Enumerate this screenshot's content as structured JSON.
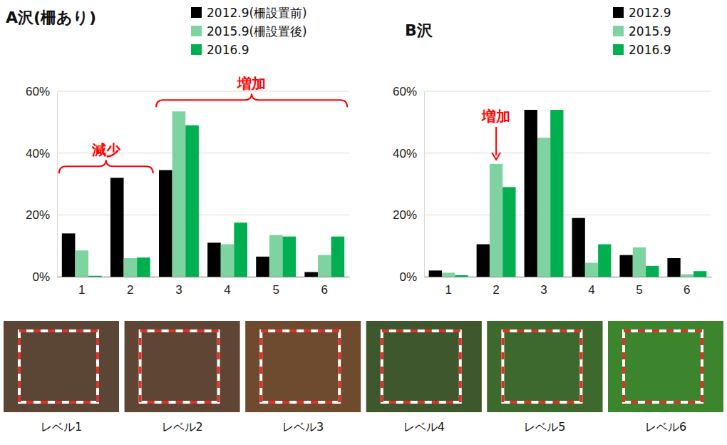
{
  "chart_data": [
    {
      "type": "bar",
      "title": "A沢(柵あり)",
      "categories": [
        "1",
        "2",
        "3",
        "4",
        "5",
        "6"
      ],
      "series": [
        {
          "name": "2012.9(柵設置前)",
          "color": "#000000",
          "values": [
            14,
            32,
            34.5,
            11,
            6.5,
            1.5
          ]
        },
        {
          "name": "2015.9(柵設置後)",
          "color": "#7fd3a0",
          "values": [
            8.5,
            6,
            53.5,
            10.5,
            13.5,
            7
          ]
        },
        {
          "name": "2016.9",
          "color": "#00b050",
          "values": [
            0.3,
            6.2,
            49,
            17.5,
            13,
            13
          ]
        }
      ],
      "ylim": [
        0,
        60
      ],
      "yticks": [
        {
          "value": 0,
          "label": "0%"
        },
        {
          "value": 20,
          "label": "20%"
        },
        {
          "value": 40,
          "label": "40%"
        },
        {
          "value": 60,
          "label": "60%"
        }
      ],
      "grid": true,
      "legend": "top-right",
      "annotations": [
        {
          "text": "減少",
          "categories": [
            "1",
            "2"
          ]
        },
        {
          "text": "増加",
          "categories": [
            "3",
            "6"
          ]
        }
      ]
    },
    {
      "type": "bar",
      "title": "B沢",
      "categories": [
        "1",
        "2",
        "3",
        "4",
        "5",
        "6"
      ],
      "series": [
        {
          "name": "2012.9",
          "color": "#000000",
          "values": [
            2,
            10.5,
            54,
            19,
            7,
            6
          ]
        },
        {
          "name": "2015.9",
          "color": "#7fd3a0",
          "values": [
            1.3,
            36.5,
            45,
            4.5,
            9.5,
            0.8
          ]
        },
        {
          "name": "2016.9",
          "color": "#00b050",
          "values": [
            0.5,
            29,
            54,
            10.5,
            3.5,
            1.8
          ]
        }
      ],
      "ylim": [
        0,
        60
      ],
      "yticks": [
        {
          "value": 0,
          "label": "0%"
        },
        {
          "value": 20,
          "label": "20%"
        },
        {
          "value": 40,
          "label": "40%"
        },
        {
          "value": 60,
          "label": "60%"
        }
      ],
      "grid": true,
      "legend": "top-right",
      "annotations": [
        {
          "text": "増加",
          "categories": [
            "2"
          ]
        }
      ]
    }
  ],
  "images": {
    "labels": [
      "レベル1",
      "レベル2",
      "レベル3",
      "レベル4",
      "レベル5",
      "レベル6"
    ]
  }
}
